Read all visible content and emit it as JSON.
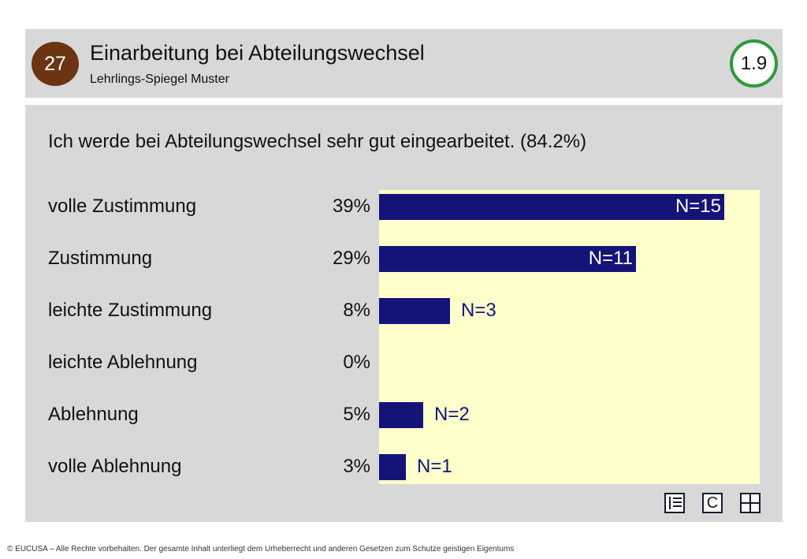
{
  "header": {
    "page_number": "27",
    "title": "Einarbeitung bei Abteilungswechsel",
    "subtitle": "Lehrlings-Spiegel Muster",
    "score": "1.9"
  },
  "colors": {
    "bar": "#141478",
    "plot_background": "#ffffcc",
    "panel_background": "#d8d8d8",
    "badge": "#6b3412",
    "score_ring": "#2e9a3a"
  },
  "chart_data": {
    "type": "bar",
    "orientation": "horizontal",
    "title": "Ich werde bei Abteilungswechsel sehr gut eingearbeitet. (84.2%)",
    "categories": [
      "volle Zustimmung",
      "Zustimmung",
      "leichte Zustimmung",
      "leichte Ablehnung",
      "Ablehnung",
      "volle Ablehnung"
    ],
    "percent_labels": [
      "39%",
      "29%",
      "8%",
      "0%",
      "5%",
      "3%"
    ],
    "n_labels": [
      "N=15",
      "N=11",
      "N=3",
      "",
      "N=2",
      "N=1"
    ],
    "values": [
      39,
      29,
      8,
      0,
      5,
      3
    ],
    "counts": [
      15,
      11,
      3,
      0,
      2,
      1
    ],
    "xlim": [
      0,
      43
    ],
    "grid": false,
    "legend": "none"
  },
  "nav": {
    "icons": [
      "list-icon",
      "c-icon",
      "grid-icon"
    ],
    "c_label": "C"
  },
  "footer": "© EUCUSA – Alle Rechte vorbehalten. Der gesamte Inhalt unterliegt dem Urheberrecht und anderen Gesetzen zum Schutze geistigen Eigentums"
}
